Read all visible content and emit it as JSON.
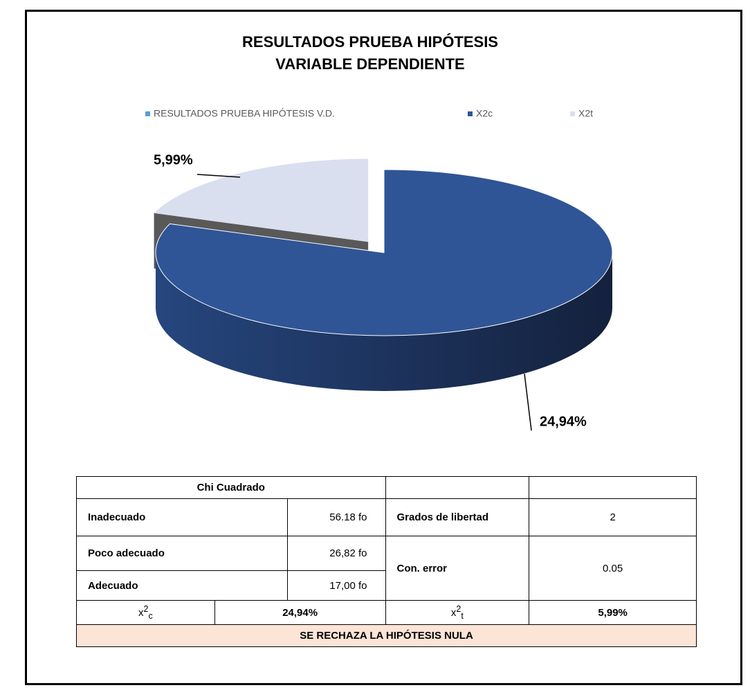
{
  "chart_data": {
    "type": "pie",
    "title": [
      "RESULTADOS PRUEBA HIPÓTESIS",
      "VARIABLE DEPENDIENTE"
    ],
    "series_name": "RESULTADOS PRUEBA HIPÓTESIS V.D.",
    "series_color": "#5b9bd5",
    "categories": [
      "X2c",
      "X2t"
    ],
    "values": [
      24.94,
      5.99
    ],
    "value_labels": [
      "24,94%",
      "5,99%"
    ],
    "colors": [
      "#2f5597",
      "#d9dfee"
    ]
  },
  "table": {
    "header": "Chi Cuadrado",
    "rows": [
      [
        "Inadecuado",
        "56.18 fo"
      ],
      [
        "Poco adecuado",
        "26,82 fo"
      ],
      [
        "Adecuado",
        "17,00 fo"
      ]
    ],
    "params": [
      [
        "Grados de libertad",
        "2"
      ],
      [
        "Con. error",
        "0.05"
      ]
    ],
    "xc": {
      "base": "x",
      "sup": "2",
      "sub": "c",
      "value": "24,94%"
    },
    "xt": {
      "base": "x",
      "sup": "2",
      "sub": "t",
      "value": "5,99%"
    },
    "conclusion": "SE RECHAZA LA HIPÓTESIS NULA"
  }
}
